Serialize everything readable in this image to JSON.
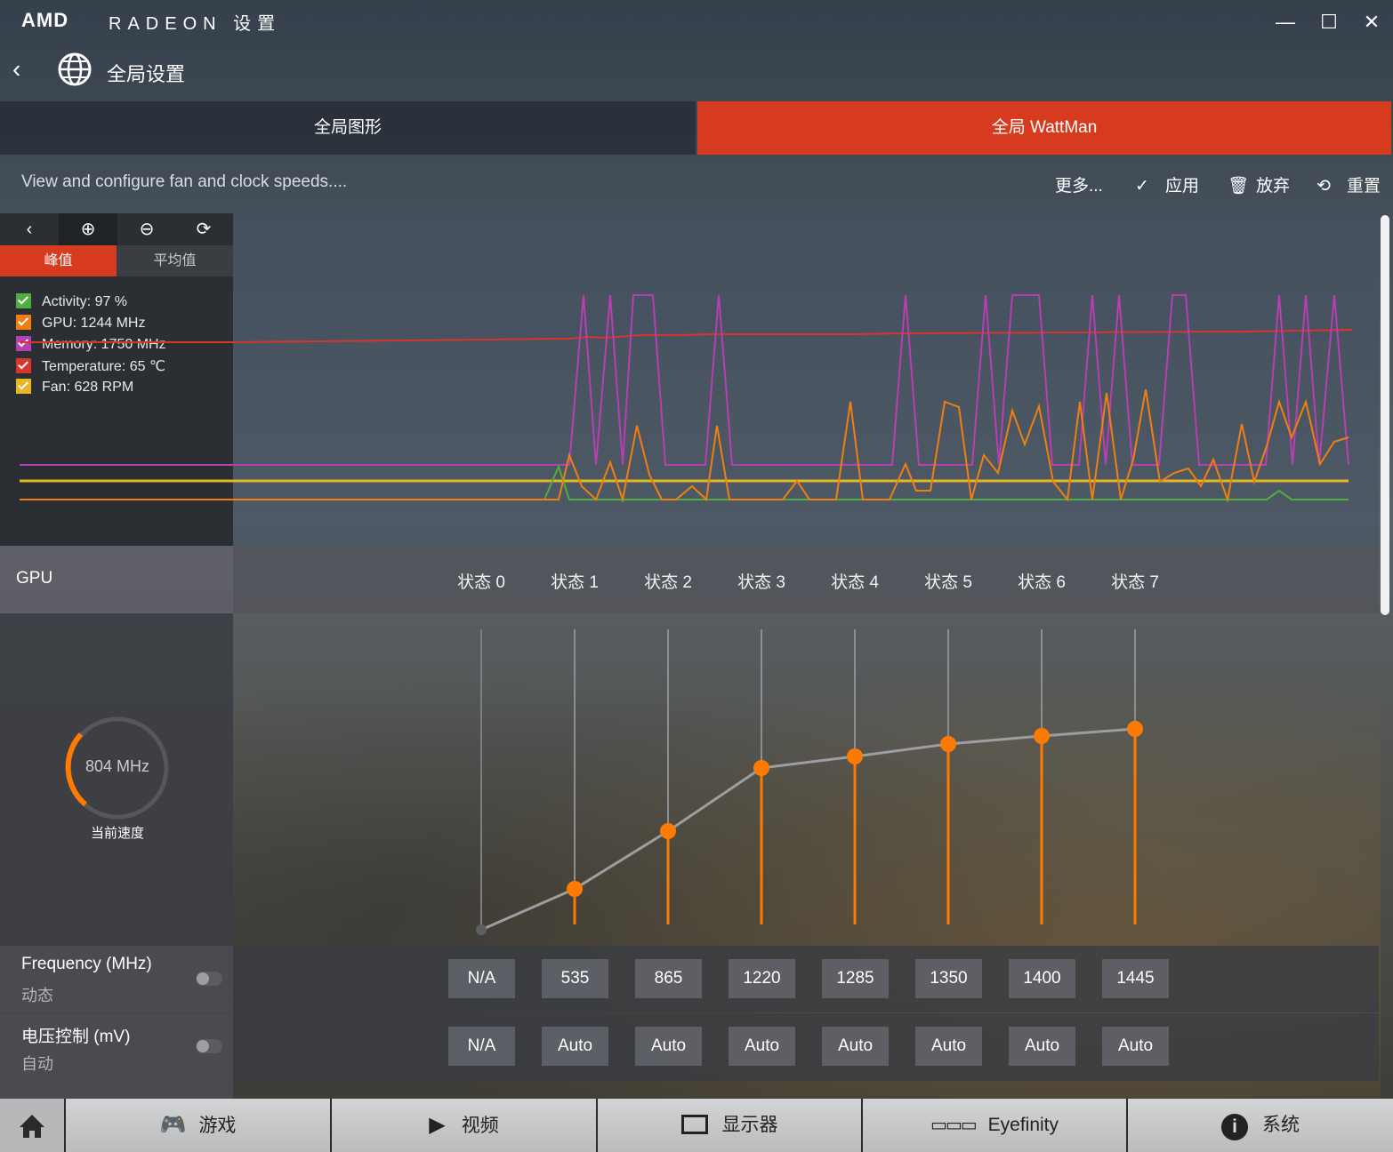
{
  "app": {
    "logo": "AMD",
    "brand": "RADEON 设置"
  },
  "window": {
    "minimize": "—",
    "maximize": "☐",
    "close": "✕"
  },
  "page": {
    "back": "‹",
    "title": "全局设置"
  },
  "tabs": [
    {
      "label": "全局图形",
      "active": false
    },
    {
      "label": "全局 WattMan",
      "active": true
    }
  ],
  "toolbar": {
    "description": "View and configure fan and clock speeds....",
    "more": "更多...",
    "apply": "应用",
    "discard": "放弃",
    "reset": "重置"
  },
  "graph_tools": {
    "back": "‹",
    "zoom_in": "⊕",
    "zoom_out": "⊖",
    "refresh": "⟳"
  },
  "graph_tabs": {
    "peak": "峰值",
    "average": "平均值",
    "active": "peak"
  },
  "legend": [
    {
      "label": "Activity: 97 %",
      "color": "#4caf3f"
    },
    {
      "label": "GPU: 1244 MHz",
      "color": "#f07f12"
    },
    {
      "label": "Memory: 1750 MHz",
      "color": "#b63fb1"
    },
    {
      "label": "Temperature: 65 ℃",
      "color": "#d8352d"
    },
    {
      "label": "Fan: 628 RPM",
      "color": "#e6b625"
    }
  ],
  "colors": {
    "accent": "#d63b20",
    "orange": "#ff7a00"
  },
  "gpu": {
    "label": "GPU",
    "current_speed": "804 MHz",
    "current_speed_caption": "当前速度",
    "gauge_fraction": 0.28
  },
  "states": [
    "状态 0",
    "状态 1",
    "状态 2",
    "状态 3",
    "状态 4",
    "状态 5",
    "状态 6",
    "状态 7"
  ],
  "frequency": {
    "label": "Frequency (MHz)",
    "mode": "动态",
    "values": [
      "N/A",
      "535",
      "865",
      "1220",
      "1285",
      "1350",
      "1400",
      "1445"
    ]
  },
  "voltage": {
    "label": "电压控制 (mV)",
    "mode": "自动",
    "values": [
      "N/A",
      "Auto",
      "Auto",
      "Auto",
      "Auto",
      "Auto",
      "Auto",
      "Auto"
    ]
  },
  "nav": [
    {
      "label": "游戏",
      "icon": "gamepad-icon"
    },
    {
      "label": "视频",
      "icon": "play-icon"
    },
    {
      "label": "显示器",
      "icon": "monitor-icon"
    },
    {
      "label": "Eyefinity",
      "icon": "eyefinity-icon"
    },
    {
      "label": "系统",
      "icon": "info-icon"
    }
  ]
}
